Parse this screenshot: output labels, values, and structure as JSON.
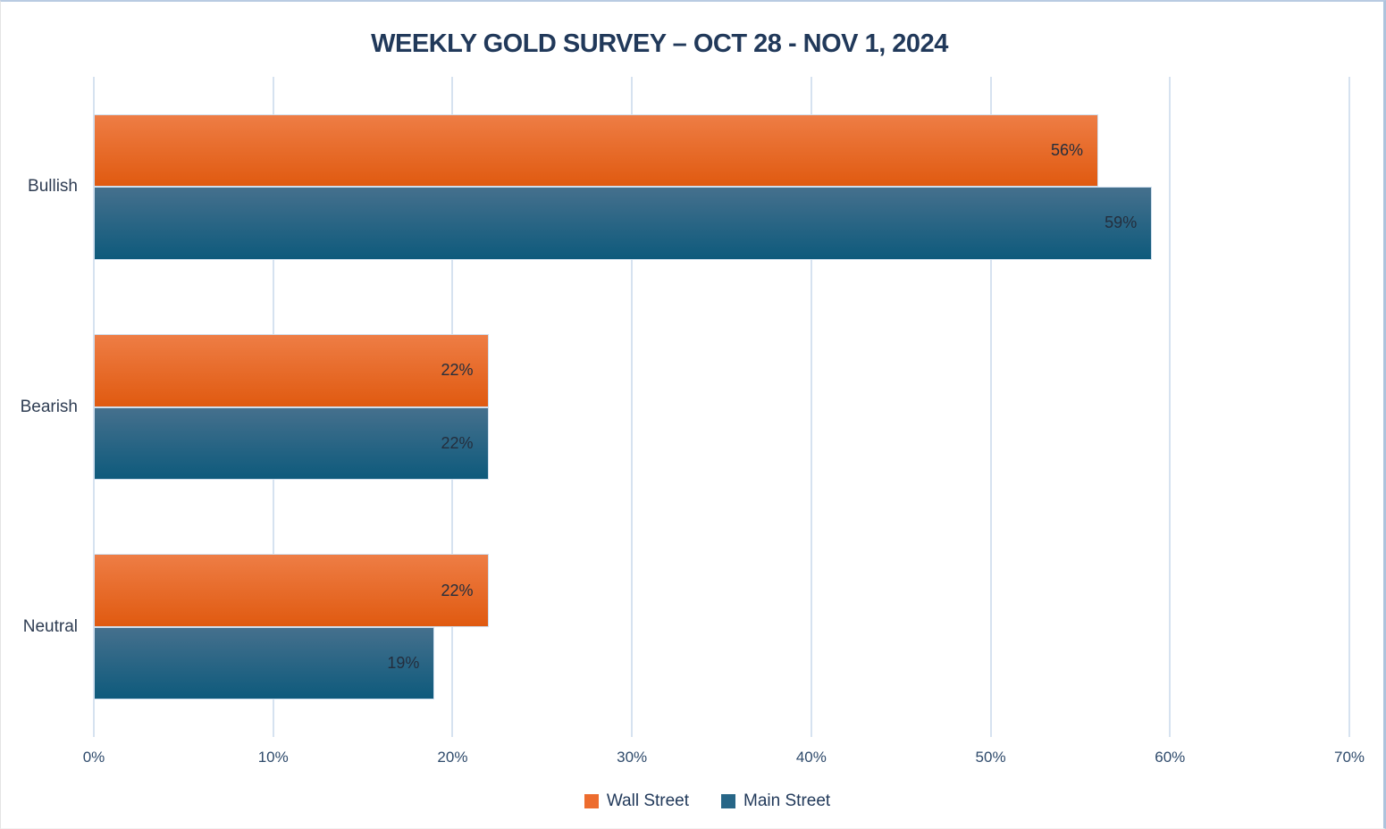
{
  "page": {
    "background": "#ffffff",
    "border_color": "#b9cbe2"
  },
  "chart_data": {
    "type": "bar",
    "orientation": "horizontal",
    "title": "WEEKLY GOLD SURVEY – OCT 28 - NOV 1, 2024",
    "title_color": "#21395a",
    "categories": [
      "Bullish",
      "Bearish",
      "Neutral"
    ],
    "series": [
      {
        "name": "Wall Street",
        "values": [
          56,
          22,
          22
        ],
        "labels": [
          "56%",
          "22%",
          "22%"
        ],
        "gradient_top": "#ee7d45",
        "gradient_bottom": "#e05a10",
        "legend_color": "#ed6c2e"
      },
      {
        "name": "Main Street",
        "values": [
          59,
          22,
          19
        ],
        "labels": [
          "59%",
          "22%",
          "19%"
        ],
        "gradient_top": "#45708d",
        "gradient_bottom": "#0e5a7c",
        "legend_color": "#276687"
      }
    ],
    "xlim": [
      0,
      70
    ],
    "x_ticks": [
      "0%",
      "10%",
      "20%",
      "30%",
      "40%",
      "50%",
      "60%",
      "70%"
    ],
    "grid": "vertical",
    "gridline_color": "#d6e2f0",
    "legend_position": "bottom",
    "value_label_color": "#242e3d",
    "axis_label_color": "#2e4a6b",
    "category_label_color": "#2e3c52"
  }
}
